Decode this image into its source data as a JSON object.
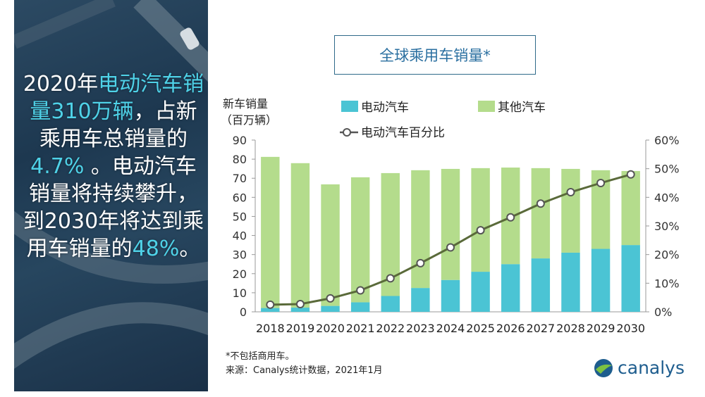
{
  "headline": {
    "segments": [
      {
        "text": "2020年",
        "highlight": false
      },
      {
        "text": "电动汽车销量310万辆",
        "highlight": true
      },
      {
        "text": "，占新乘用车总销量的 ",
        "highlight": false
      },
      {
        "text": "4.7%",
        "highlight": true
      },
      {
        "text": " 。电动汽车销量将持续攀升，到2030年将达到乘用车销量的",
        "highlight": false
      },
      {
        "text": "48%",
        "highlight": true
      },
      {
        "text": "。",
        "highlight": false
      }
    ]
  },
  "chart_data": {
    "type": "bar",
    "stacked": true,
    "title": "全球乘用车销量*",
    "ylabel": "新车销量",
    "ylabel_unit": "（百万辆）",
    "categories": [
      "2018",
      "2019",
      "2020",
      "2021",
      "2022",
      "2023",
      "2024",
      "2025",
      "2026",
      "2027",
      "2028",
      "2029",
      "2030"
    ],
    "series": [
      {
        "name": "电动汽车",
        "color": "#4bc4d4",
        "values": [
          2,
          2.2,
          3.1,
          5,
          8.3,
          12.5,
          16.7,
          21,
          25,
          28,
          31,
          33,
          35
        ]
      },
      {
        "name": "其他汽车",
        "color": "#b4dc8c",
        "values": [
          79.2,
          75.7,
          63.7,
          65.5,
          64.4,
          61.7,
          58.2,
          54.3,
          50.6,
          47.3,
          43.9,
          41.2,
          38.8
        ]
      }
    ],
    "line_series": {
      "name": "电动汽车百分比",
      "color": "#5a6a3a",
      "axis": "right",
      "values": [
        2.5,
        2.7,
        4.7,
        7.5,
        11.7,
        17,
        22.5,
        28.5,
        33,
        37.8,
        41.8,
        45,
        48
      ]
    },
    "ylim": [
      0,
      90
    ],
    "yticks": [
      "0",
      "10",
      "20",
      "30",
      "40",
      "50",
      "60",
      "70",
      "80",
      "90"
    ],
    "y2lim": [
      0,
      60
    ],
    "y2ticks": [
      "0%",
      "10%",
      "20%",
      "30%",
      "40%",
      "50%",
      "60%"
    ],
    "legend_placement": "top",
    "grid": false
  },
  "footnote": {
    "note": "*不包括商用车。",
    "source": "来源：Canalys统计数据，2021年1月"
  },
  "logo": {
    "text": "canalys"
  }
}
